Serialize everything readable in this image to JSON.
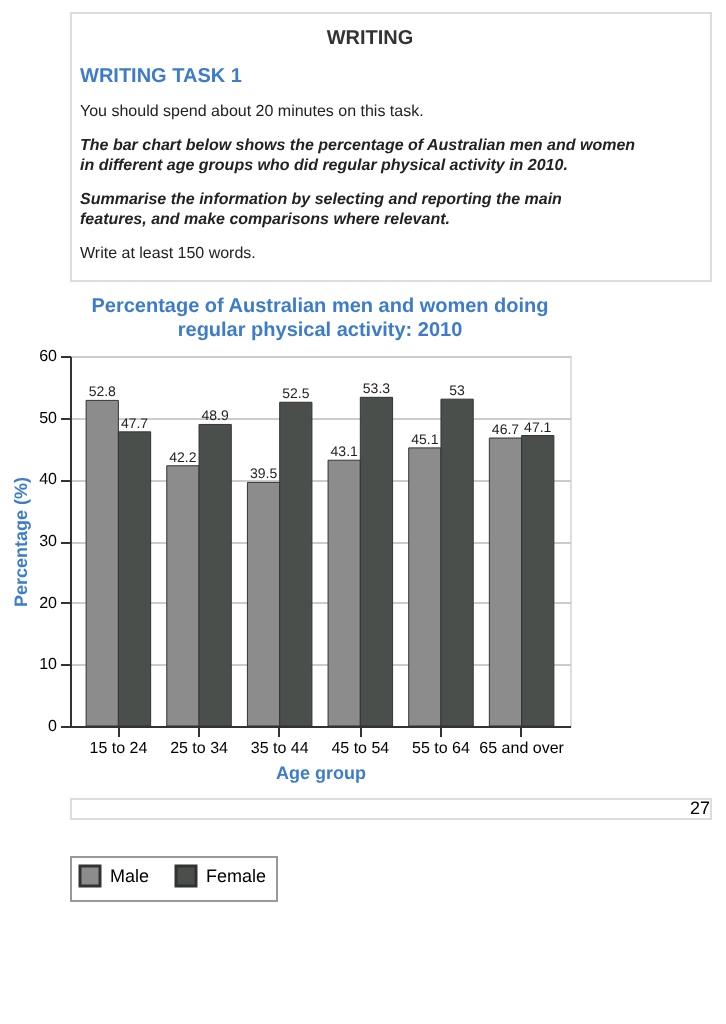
{
  "chart_data": {
    "type": "bar",
    "title": "Percentage of Australian men and women doing regular physical activity: 2010",
    "xlabel": "Age group",
    "ylabel": "Percentage (%)",
    "categories": [
      "15 to 24",
      "25 to 34",
      "35 to 44",
      "45 to 54",
      "55 to 64",
      "65 and over"
    ],
    "series": [
      {
        "name": "Male",
        "color": "#8c8c8c",
        "values": [
          52.8,
          42.2,
          39.5,
          43.1,
          45.1,
          46.7
        ]
      },
      {
        "name": "Female",
        "color": "#4a4f4c",
        "values": [
          47.7,
          48.9,
          52.5,
          53.3,
          53,
          47.1
        ]
      }
    ],
    "ylim": [
      0,
      60
    ],
    "yticks": [
      0,
      10,
      20,
      30,
      40,
      50,
      60
    ],
    "grid": "y",
    "legend": "bottom",
    "data_labels": true,
    "annotations": [
      "WRITING",
      "WRITING TASK 1",
      "You should spend about 20 minutes on this task.",
      "The bar chart below shows the percentage of Australian men and women in different age groups who did regular physical activity in 2010.",
      "Summarise the information by selecting and reporting the main features, and make comparisons where relevant.",
      "Write at least 150 words.",
      "27"
    ]
  }
}
